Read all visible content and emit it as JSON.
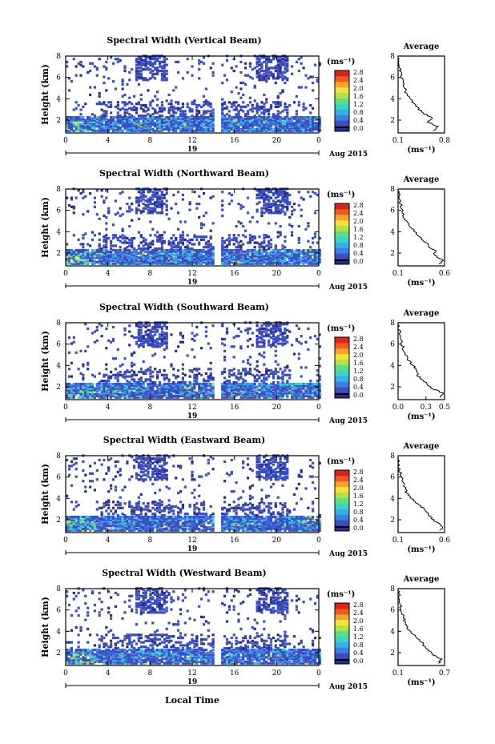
{
  "figure": {
    "xlabel_bottom": "Local Time",
    "date_label": "Aug 2015",
    "day_label": "19",
    "unit_label": "(ms⁻¹)",
    "avg_title": "Average"
  },
  "colorbar": {
    "ticks": [
      "2.8",
      "2.4",
      "2.0",
      "1.6",
      "1.2",
      "0.8",
      "0.4",
      "0.0"
    ],
    "colors": [
      "#2b2d8c",
      "#3b4fc4",
      "#3f7fe0",
      "#37b0e8",
      "#3dd4c6",
      "#5fe07e",
      "#b6e04a",
      "#f2e23a",
      "#f6a22c",
      "#ee5a22",
      "#d8241c"
    ]
  },
  "chart_data": [
    {
      "type": "heatmap",
      "title": "Spectral Width (Vertical Beam)",
      "ylabel": "Height (km)",
      "xticks": [
        "0",
        "4",
        "8",
        "12",
        "16",
        "20",
        "0"
      ],
      "yticks": [
        "2",
        "4",
        "6",
        "8"
      ],
      "xlim": [
        0,
        24
      ],
      "ylim": [
        0.8,
        8.0
      ],
      "colorbar_range": [
        0.0,
        2.8
      ],
      "gap_hours": [
        14.0,
        14.6
      ],
      "average": {
        "title": "Average",
        "xticks": [
          "0.1",
          "0.8"
        ],
        "xlim": [
          0.1,
          0.8
        ],
        "yticks": [
          "2",
          "4",
          "6",
          "8"
        ],
        "ylim": [
          0.8,
          8.0
        ],
        "xlabel": "(ms⁻¹)",
        "profile": [
          [
            0.62,
            1.0
          ],
          [
            0.7,
            1.4
          ],
          [
            0.55,
            1.8
          ],
          [
            0.62,
            2.2
          ],
          [
            0.5,
            2.6
          ],
          [
            0.42,
            3.0
          ],
          [
            0.36,
            3.4
          ],
          [
            0.3,
            3.8
          ],
          [
            0.26,
            4.2
          ],
          [
            0.22,
            4.6
          ],
          [
            0.2,
            5.0
          ],
          [
            0.17,
            5.5
          ],
          [
            0.15,
            6.0
          ],
          [
            0.14,
            6.5
          ],
          [
            0.12,
            7.0
          ],
          [
            0.11,
            7.5
          ],
          [
            0.1,
            7.9
          ]
        ]
      }
    },
    {
      "type": "heatmap",
      "title": "Spectral Width (Northward Beam)",
      "ylabel": "Height (km)",
      "xticks": [
        "0",
        "4",
        "8",
        "12",
        "16",
        "20",
        "0"
      ],
      "yticks": [
        "2",
        "4",
        "6",
        "8"
      ],
      "xlim": [
        0,
        24
      ],
      "ylim": [
        0.8,
        8.0
      ],
      "colorbar_range": [
        0.0,
        2.8
      ],
      "gap_hours": [
        14.0,
        14.6
      ],
      "average": {
        "title": "Average",
        "xticks": [
          "0.1",
          "0.6"
        ],
        "xlim": [
          0.1,
          0.6
        ],
        "yticks": [
          "2",
          "4",
          "6",
          "8"
        ],
        "ylim": [
          0.8,
          8.0
        ],
        "xlabel": "(ms⁻¹)",
        "profile": [
          [
            0.55,
            1.0
          ],
          [
            0.58,
            1.4
          ],
          [
            0.48,
            1.8
          ],
          [
            0.5,
            2.2
          ],
          [
            0.44,
            2.6
          ],
          [
            0.4,
            3.0
          ],
          [
            0.34,
            3.4
          ],
          [
            0.3,
            3.8
          ],
          [
            0.26,
            4.2
          ],
          [
            0.22,
            4.6
          ],
          [
            0.19,
            5.0
          ],
          [
            0.16,
            5.5
          ],
          [
            0.14,
            6.0
          ],
          [
            0.13,
            6.5
          ],
          [
            0.12,
            7.0
          ],
          [
            0.11,
            7.5
          ],
          [
            0.1,
            7.9
          ]
        ]
      }
    },
    {
      "type": "heatmap",
      "title": "Spectral Width (Southward Beam)",
      "ylabel": "Height (km)",
      "xticks": [
        "0",
        "4",
        "8",
        "12",
        "16",
        "20",
        "0"
      ],
      "yticks": [
        "2",
        "4",
        "6",
        "8"
      ],
      "xlim": [
        0,
        24
      ],
      "ylim": [
        0.8,
        8.0
      ],
      "colorbar_range": [
        0.0,
        2.8
      ],
      "gap_hours": [
        14.0,
        14.6
      ],
      "average": {
        "title": "Average",
        "xticks": [
          "0.0",
          "0.3",
          "0.5"
        ],
        "xlim": [
          0.0,
          0.5
        ],
        "yticks": [
          "2",
          "4",
          "6",
          "8"
        ],
        "ylim": [
          0.8,
          8.0
        ],
        "xlabel": "(ms⁻¹)",
        "profile": [
          [
            0.45,
            1.0
          ],
          [
            0.48,
            1.4
          ],
          [
            0.38,
            1.8
          ],
          [
            0.32,
            2.2
          ],
          [
            0.28,
            2.6
          ],
          [
            0.22,
            3.0
          ],
          [
            0.2,
            3.4
          ],
          [
            0.18,
            3.8
          ],
          [
            0.14,
            4.2
          ],
          [
            0.1,
            4.6
          ],
          [
            0.08,
            5.0
          ],
          [
            0.06,
            5.5
          ],
          [
            0.04,
            6.0
          ],
          [
            0.03,
            6.5
          ],
          [
            0.02,
            7.0
          ],
          [
            0.01,
            7.5
          ],
          [
            0.0,
            7.9
          ]
        ]
      }
    },
    {
      "type": "heatmap",
      "title": "Spectral Width (Eastward Beam)",
      "ylabel": "Height (km)",
      "xticks": [
        "0",
        "4",
        "8",
        "12",
        "16",
        "20",
        "0"
      ],
      "yticks": [
        "2",
        "4",
        "6",
        "8"
      ],
      "xlim": [
        0,
        24
      ],
      "ylim": [
        0.8,
        8.0
      ],
      "colorbar_range": [
        0.0,
        2.8
      ],
      "gap_hours": [
        14.0,
        14.6
      ],
      "average": {
        "title": "Average",
        "xticks": [
          "0.1",
          "0.6"
        ],
        "xlim": [
          0.1,
          0.6
        ],
        "yticks": [
          "2",
          "4",
          "6",
          "8"
        ],
        "ylim": [
          0.8,
          8.0
        ],
        "xlabel": "(ms⁻¹)",
        "profile": [
          [
            0.55,
            1.0
          ],
          [
            0.58,
            1.4
          ],
          [
            0.5,
            1.8
          ],
          [
            0.46,
            2.2
          ],
          [
            0.42,
            2.6
          ],
          [
            0.38,
            3.0
          ],
          [
            0.32,
            3.4
          ],
          [
            0.27,
            3.8
          ],
          [
            0.23,
            4.2
          ],
          [
            0.19,
            4.6
          ],
          [
            0.17,
            5.0
          ],
          [
            0.15,
            5.5
          ],
          [
            0.14,
            6.0
          ],
          [
            0.12,
            6.5
          ],
          [
            0.11,
            7.0
          ],
          [
            0.1,
            7.5
          ],
          [
            0.1,
            7.9
          ]
        ]
      }
    },
    {
      "type": "heatmap",
      "title": "Spectral Width (Westward Beam)",
      "ylabel": "Height (km)",
      "xticks": [
        "0",
        "4",
        "8",
        "12",
        "16",
        "20",
        "0"
      ],
      "yticks": [
        "2",
        "4",
        "6",
        "8"
      ],
      "xlim": [
        0,
        24
      ],
      "ylim": [
        0.8,
        8.0
      ],
      "colorbar_range": [
        0.0,
        2.8
      ],
      "gap_hours": [
        14.0,
        14.6
      ],
      "average": {
        "title": "Average",
        "xticks": [
          "0.1",
          "0.7"
        ],
        "xlim": [
          0.1,
          0.7
        ],
        "yticks": [
          "2",
          "4",
          "6",
          "8"
        ],
        "ylim": [
          0.8,
          8.0
        ],
        "xlabel": "(ms⁻¹)",
        "profile": [
          [
            0.62,
            1.0
          ],
          [
            0.66,
            1.4
          ],
          [
            0.55,
            1.8
          ],
          [
            0.5,
            2.2
          ],
          [
            0.44,
            2.6
          ],
          [
            0.4,
            3.0
          ],
          [
            0.34,
            3.4
          ],
          [
            0.28,
            3.8
          ],
          [
            0.24,
            4.2
          ],
          [
            0.2,
            4.6
          ],
          [
            0.18,
            5.0
          ],
          [
            0.16,
            5.5
          ],
          [
            0.14,
            6.0
          ],
          [
            0.13,
            6.5
          ],
          [
            0.12,
            7.0
          ],
          [
            0.11,
            7.5
          ],
          [
            0.1,
            7.9
          ]
        ]
      }
    }
  ]
}
